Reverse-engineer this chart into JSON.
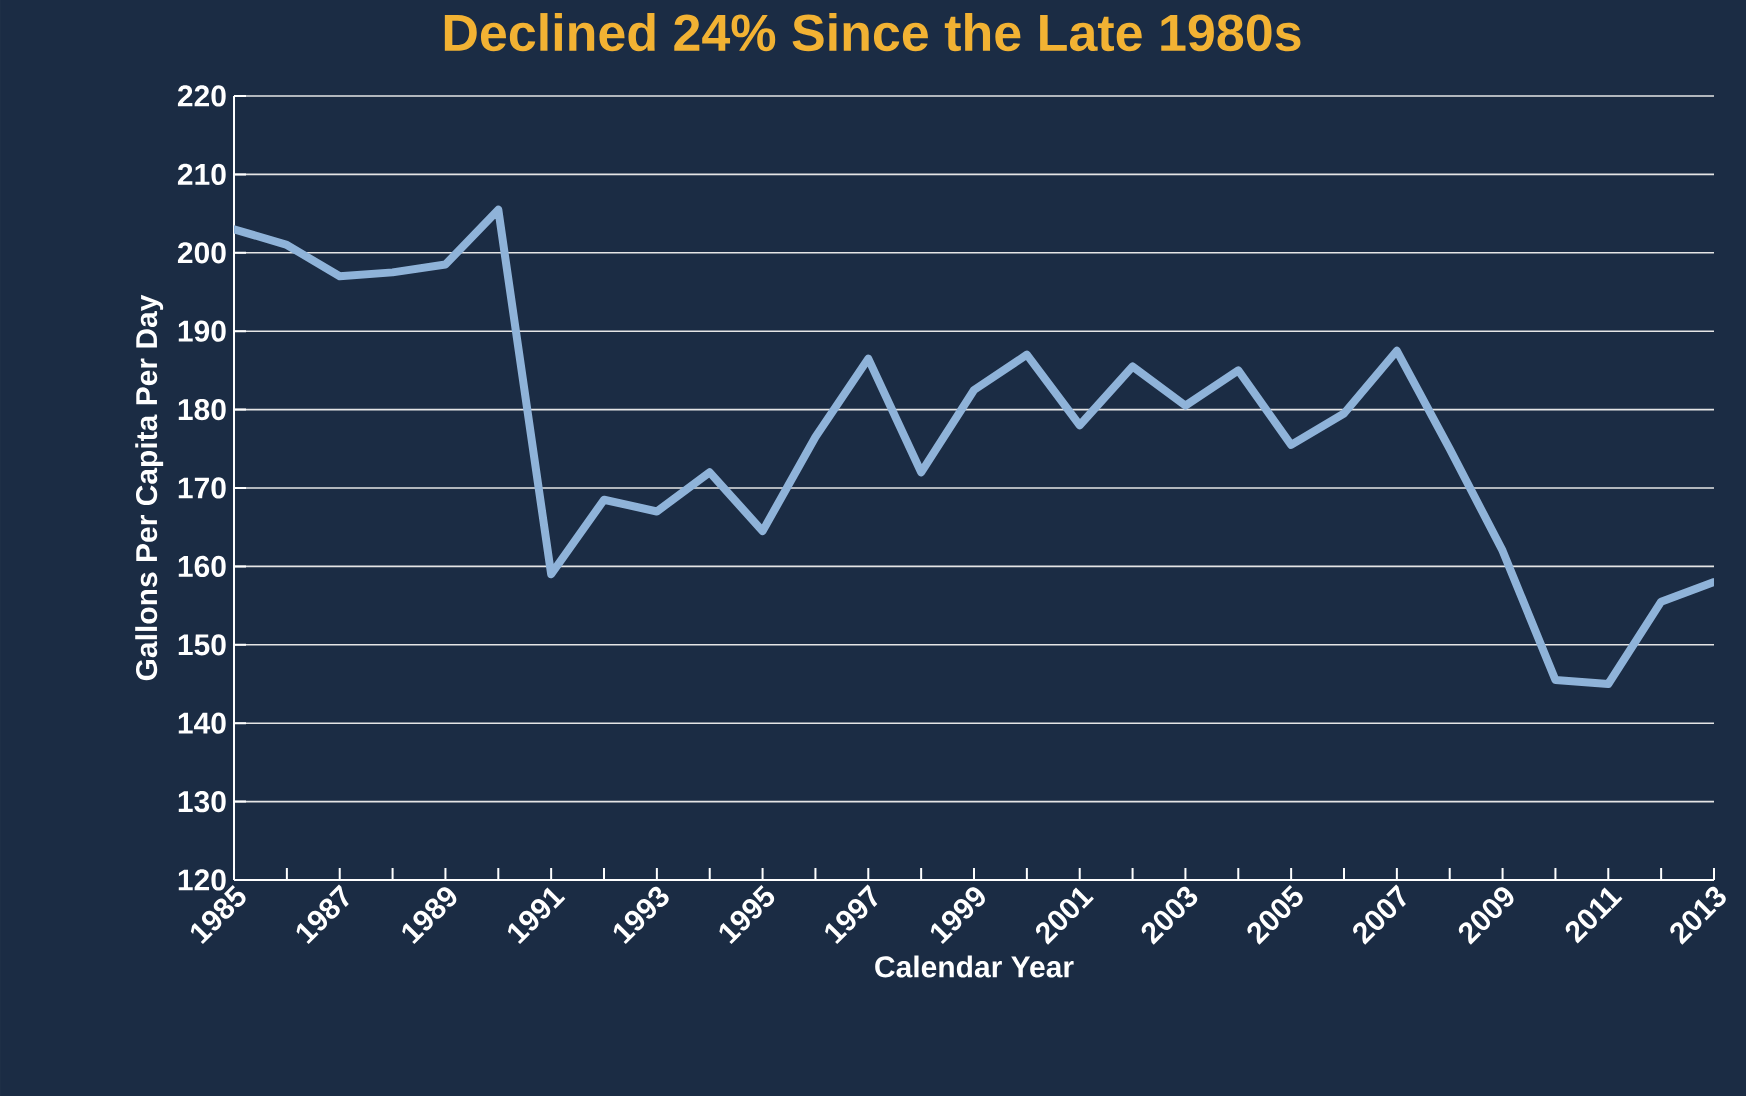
{
  "chart_data": {
    "type": "line",
    "title": "Declined 24% Since the Late 1980s",
    "xlabel": "Calendar Year",
    "ylabel": "Gallons Per Capita Per Day",
    "x": [
      1985,
      1986,
      1987,
      1988,
      1989,
      1990,
      1991,
      1992,
      1993,
      1994,
      1995,
      1996,
      1997,
      1998,
      1999,
      2000,
      2001,
      2002,
      2003,
      2004,
      2005,
      2006,
      2007,
      2008,
      2009,
      2010,
      2011,
      2012,
      2013
    ],
    "series": [
      {
        "color": "#8fb3d9",
        "values": [
          203,
          201,
          197,
          197.5,
          198.5,
          205.5,
          159,
          168.5,
          167,
          172,
          164.5,
          176.5,
          186.5,
          172,
          182.5,
          187,
          178,
          185.5,
          180.5,
          185,
          175.5,
          179.5,
          187.5,
          175,
          162,
          145.5,
          145,
          155.5,
          158
        ]
      }
    ],
    "xlim": [
      1985,
      2013
    ],
    "xticks": [
      1985,
      {
        "value": 1986,
        "label": null
      },
      1987,
      {
        "value": 1988,
        "label": null
      },
      1989,
      {
        "value": 1990,
        "label": null
      },
      1991,
      {
        "value": 1992,
        "label": null
      },
      1993,
      {
        "value": 1994,
        "label": null
      },
      1995,
      {
        "value": 1996,
        "label": null
      },
      1997,
      {
        "value": 1998,
        "label": null
      },
      1999,
      {
        "value": 2000,
        "label": null
      },
      2001,
      {
        "value": 2002,
        "label": null
      },
      2003,
      {
        "value": 2004,
        "label": null
      },
      2005,
      {
        "value": 2006,
        "label": null
      },
      2007,
      {
        "value": 2008,
        "label": null
      },
      2009,
      {
        "value": 2010,
        "label": null
      },
      2011,
      {
        "value": 2012,
        "label": null
      },
      2013
    ],
    "ylim": [
      120,
      220
    ],
    "yticks": [
      120,
      130,
      140,
      150,
      160,
      170,
      180,
      190,
      200,
      210,
      220
    ],
    "grid": "y",
    "marker": "none",
    "line_style": "solid"
  }
}
